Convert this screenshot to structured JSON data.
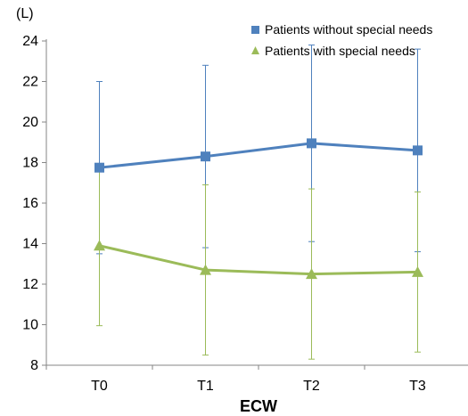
{
  "chart_data": {
    "type": "line",
    "categories": [
      "T0",
      "T1",
      "T2",
      "T3"
    ],
    "xlabel": "ECW",
    "ylabel": "(L)",
    "ylim": [
      8,
      24
    ],
    "yticks": [
      8,
      10,
      12,
      14,
      16,
      18,
      20,
      22,
      24
    ],
    "grid": false,
    "legend_position": "top-right",
    "error_bars": true,
    "series": [
      {
        "name": "Patients without special needs",
        "color": "#4f81bd",
        "marker": "square",
        "values": [
          17.75,
          18.3,
          18.95,
          18.6
        ],
        "error": [
          4.25,
          4.5,
          4.85,
          5.0
        ]
      },
      {
        "name": "Patients with special needs",
        "color": "#9bbb59",
        "marker": "triangle",
        "values": [
          13.9,
          12.7,
          12.5,
          12.6
        ],
        "error": [
          3.95,
          4.2,
          4.2,
          3.95
        ]
      }
    ]
  }
}
